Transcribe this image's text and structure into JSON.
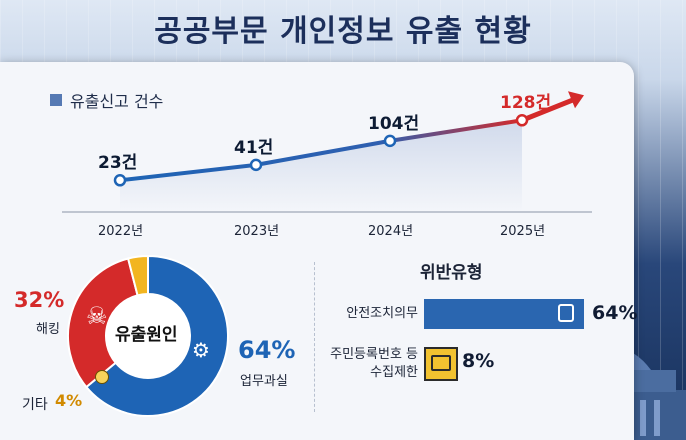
{
  "title": "공공부문 개인정보 유출 현황",
  "colors": {
    "line": "#1e64b5",
    "accent": "#d42a2a",
    "donut_blue": "#1e64b5",
    "donut_red": "#d42a2a",
    "donut_yellow": "#f2b520",
    "bar_blue": "#2a66b0",
    "icon_yellow": "#f2c230"
  },
  "chart_data": [
    {
      "type": "line",
      "legend": "유출신고 건수",
      "x": [
        "2022년",
        "2023년",
        "2024년",
        "2025년"
      ],
      "values": [
        23,
        41,
        104,
        128
      ],
      "data_labels": [
        "23건",
        "41건",
        "104건",
        "128건"
      ]
    },
    {
      "type": "pie",
      "center_label": "유출원인",
      "slices": [
        {
          "label": "업무과실",
          "value": 64,
          "text": "64%"
        },
        {
          "label": "해킹",
          "value": 32,
          "text": "32%"
        },
        {
          "label": "기타",
          "value": 4,
          "text": "4%"
        }
      ]
    },
    {
      "type": "bar",
      "title": "위반유형",
      "categories": [
        "안전조치의무",
        "주민등록번호 등 수집제한"
      ],
      "category_lines": [
        [
          "안전조치의무"
        ],
        [
          "주민등록번호 등",
          "수집제한"
        ]
      ],
      "values": [
        64,
        8
      ],
      "data_labels": [
        "64%",
        "8%"
      ],
      "icons": [
        "lock-icon",
        "id-card-icon"
      ]
    }
  ]
}
